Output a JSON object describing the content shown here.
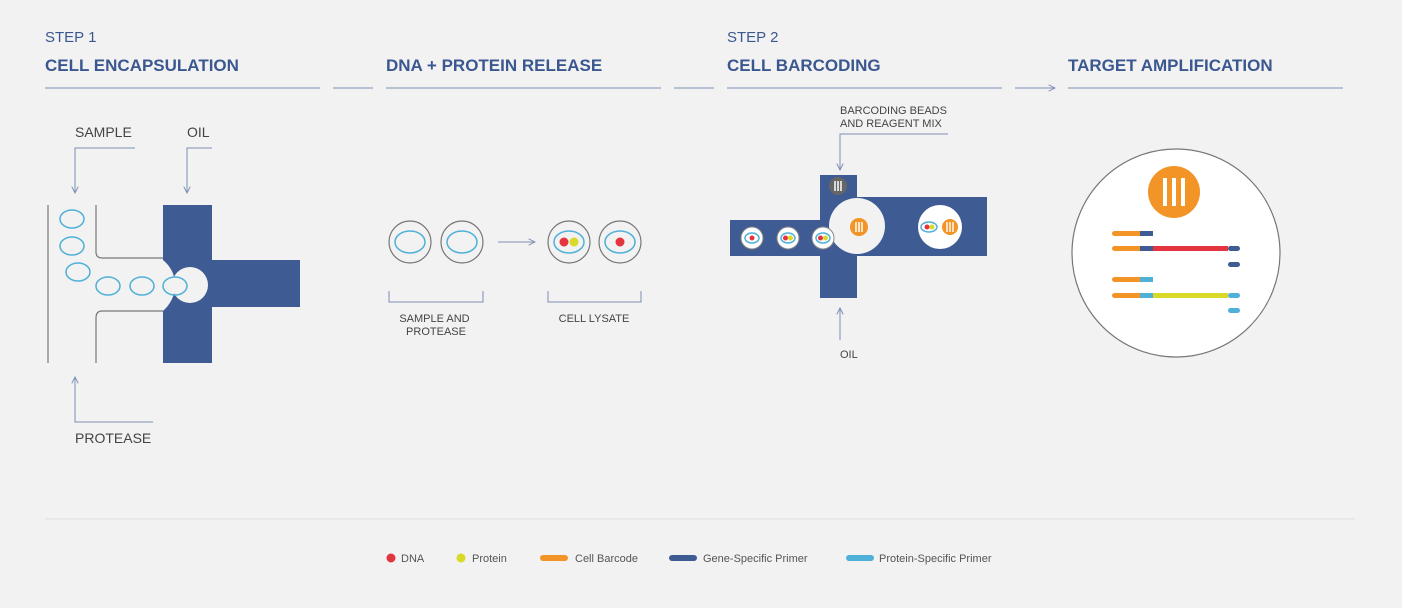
{
  "steps": [
    {
      "step": "STEP 1",
      "title": "CELL ENCAPSULATION"
    },
    {
      "title": "DNA + PROTEIN RELEASE"
    },
    {
      "step": "STEP 2",
      "title": "CELL BARCODING"
    },
    {
      "title": "TARGET AMPLIFICATION"
    }
  ],
  "encapsulation": {
    "sample": "SAMPLE",
    "oil": "OIL",
    "protease": "PROTEASE"
  },
  "release": {
    "before": [
      "SAMPLE AND",
      "PROTEASE"
    ],
    "after": "CELL LYSATE"
  },
  "barcoding": {
    "reagent": [
      "BARCODING BEADS",
      "AND REAGENT MIX"
    ],
    "oil": "OIL"
  },
  "legend": [
    "DNA",
    "Protein",
    "Cell Barcode",
    "Gene-Specific Primer",
    "Protein-Specific Primer"
  ]
}
